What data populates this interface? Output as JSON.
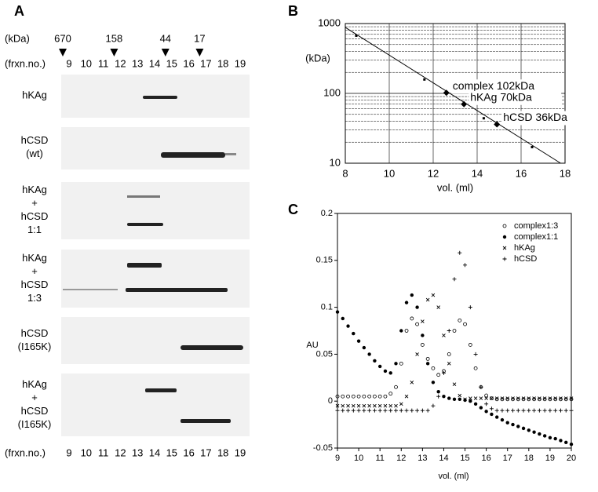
{
  "panel_a": {
    "label": "A",
    "kda_label": "(kDa)",
    "markers": [
      670,
      158,
      44,
      17
    ],
    "marker_fractions": [
      9,
      12,
      15,
      17
    ],
    "fraction_label": "(frxn.no.)",
    "fractions": [
      9,
      10,
      11,
      12,
      13,
      14,
      15,
      16,
      17,
      18,
      19
    ],
    "lanes": [
      {
        "lines": [
          "hKAg"
        ]
      },
      {
        "lines": [
          "hCSD",
          "(wt)"
        ]
      },
      {
        "lines": [
          "hKAg",
          "+",
          "hCSD",
          "1:1"
        ]
      },
      {
        "lines": [
          "hKAg",
          "+",
          "hCSD",
          "1:3"
        ]
      },
      {
        "lines": [
          "hCSD",
          "(I165K)"
        ]
      },
      {
        "lines": [
          "hKAg",
          "+",
          "hCSD",
          "(I165K)"
        ]
      }
    ]
  },
  "chart_data": [
    {
      "type": "scatter",
      "label": "B",
      "ylabel": "(kDa)",
      "xlabel": "vol. (ml)",
      "log_y": true,
      "grid": true,
      "xlim": [
        8,
        18
      ],
      "xticks": [
        8,
        10,
        12,
        14,
        16,
        18
      ],
      "ylim": [
        10,
        1000
      ],
      "yticks": [
        10,
        100,
        1000
      ],
      "yminor": [
        20,
        30,
        40,
        50,
        60,
        70,
        80,
        90,
        200,
        300,
        400,
        500,
        600,
        700,
        800,
        900
      ],
      "standards": {
        "x": [
          8.5,
          11.6,
          14.3,
          16.5
        ],
        "values": [
          670,
          158,
          44,
          17
        ]
      },
      "samples": {
        "x": [
          12.6,
          13.4,
          14.9
        ],
        "values": [
          102,
          70,
          36
        ],
        "value_labels": [
          "complex 102kDa",
          "hKAg 70kDa",
          "hCSD 36kDa"
        ]
      },
      "fit": {
        "x": [
          8,
          17.8
        ],
        "values": [
          880,
          10
        ]
      }
    },
    {
      "type": "scatter",
      "label": "C",
      "ylabel": "AU",
      "xlabel": "vol. (ml)",
      "xlim": [
        9,
        20
      ],
      "xticks": [
        9,
        10,
        11,
        12,
        13,
        14,
        15,
        16,
        17,
        18,
        19,
        20
      ],
      "ylim": [
        -0.05,
        0.2
      ],
      "yticks": [
        -0.05,
        0,
        0.05,
        0.1,
        0.15,
        0.2
      ],
      "x": [
        9,
        9.25,
        9.5,
        9.75,
        10,
        10.25,
        10.5,
        10.75,
        11,
        11.25,
        11.5,
        11.75,
        12,
        12.25,
        12.5,
        12.75,
        13,
        13.25,
        13.5,
        13.75,
        14,
        14.25,
        14.5,
        14.75,
        15,
        15.25,
        15.5,
        15.75,
        16,
        16.25,
        16.5,
        16.75,
        17,
        17.25,
        17.5,
        17.75,
        18,
        18.25,
        18.5,
        18.75,
        19,
        19.25,
        19.5,
        19.75,
        20
      ],
      "series": [
        {
          "name": "complex1:3",
          "color": "#000",
          "marker": "circle-open",
          "values": [
            0.005,
            0.005,
            0.005,
            0.005,
            0.005,
            0.005,
            0.005,
            0.005,
            0.005,
            0.005,
            0.008,
            0.015,
            0.04,
            0.075,
            0.088,
            0.082,
            0.06,
            0.045,
            0.035,
            0.028,
            0.032,
            0.05,
            0.075,
            0.086,
            0.082,
            0.06,
            0.035,
            0.015,
            0.006,
            0.003,
            0.002,
            0.002,
            0.002,
            0.002,
            0.002,
            0.002,
            0.002,
            0.002,
            0.002,
            0.002,
            0.002,
            0.002,
            0.002,
            0.002,
            0.002
          ]
        },
        {
          "name": "complex1:1",
          "color": "#000",
          "marker": "circle",
          "values": [
            0.095,
            0.088,
            0.08,
            0.072,
            0.064,
            0.057,
            0.05,
            0.043,
            0.037,
            0.032,
            0.03,
            0.04,
            0.075,
            0.105,
            0.113,
            0.1,
            0.07,
            0.04,
            0.02,
            0.01,
            0.005,
            0.003,
            0.002,
            0.002,
            0.001,
            0,
            -0.003,
            -0.007,
            -0.011,
            -0.014,
            -0.017,
            -0.02,
            -0.023,
            -0.025,
            -0.027,
            -0.029,
            -0.031,
            -0.033,
            -0.035,
            -0.037,
            -0.039,
            -0.04,
            -0.042,
            -0.044,
            -0.046
          ]
        },
        {
          "name": "hKAg",
          "color": "#000",
          "marker": "x",
          "values": [
            -0.005,
            -0.005,
            -0.005,
            -0.005,
            -0.005,
            -0.005,
            -0.005,
            -0.005,
            -0.005,
            -0.005,
            -0.005,
            -0.005,
            -0.003,
            0.005,
            0.02,
            0.05,
            0.085,
            0.108,
            0.113,
            0.1,
            0.07,
            0.04,
            0.018,
            0.006,
            0.002,
            0.003,
            0.003,
            0.003,
            0.003,
            0.003,
            0.003,
            0.003,
            0.003,
            0.003,
            0.003,
            0.003,
            0.003,
            0.003,
            0.003,
            0.003,
            0.003,
            0.003,
            0.003,
            0.003,
            0.003
          ]
        },
        {
          "name": "hCSD",
          "color": "#000",
          "marker": "plus",
          "values": [
            -0.01,
            -0.01,
            -0.01,
            -0.01,
            -0.01,
            -0.01,
            -0.01,
            -0.01,
            -0.01,
            -0.01,
            -0.01,
            -0.01,
            -0.01,
            -0.01,
            -0.01,
            -0.01,
            -0.01,
            -0.01,
            -0.005,
            0.005,
            0.03,
            0.075,
            0.13,
            0.158,
            0.145,
            0.1,
            0.05,
            0.015,
            -0.003,
            -0.008,
            -0.01,
            -0.01,
            -0.01,
            -0.01,
            -0.01,
            -0.01,
            -0.01,
            -0.01,
            -0.01,
            -0.01,
            -0.01,
            -0.01,
            -0.01,
            -0.01,
            -0.01
          ]
        }
      ]
    }
  ]
}
